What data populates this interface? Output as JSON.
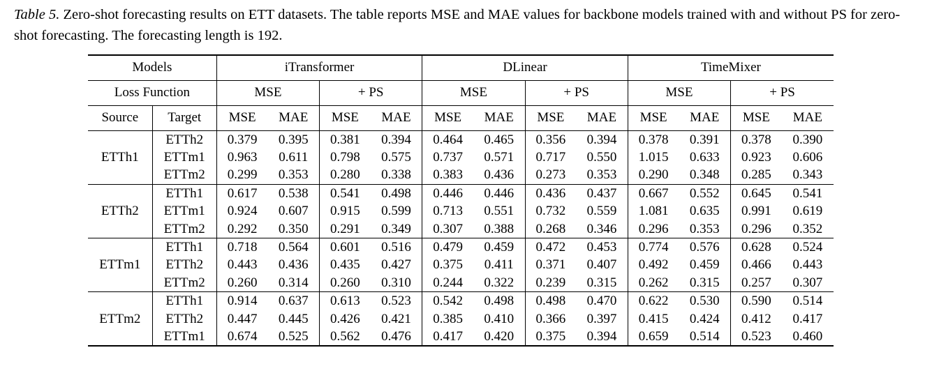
{
  "caption": {
    "label": "Table 5.",
    "text": " Zero-shot forecasting results on ETT datasets. The table reports MSE and MAE values for backbone models trained with and without PS for zero-shot forecasting. The forecasting length is 192."
  },
  "header": {
    "models_label": "Models",
    "models": [
      "iTransformer",
      "DLinear",
      "TimeMixer"
    ],
    "loss_label": "Loss Function",
    "loss": [
      "MSE",
      "+ PS"
    ],
    "source_label": "Source",
    "target_label": "Target",
    "metrics": [
      "MSE",
      "MAE"
    ]
  },
  "groups": [
    {
      "source": "ETTh1",
      "rows": [
        {
          "target": "ETTh2",
          "vals": [
            "0.379",
            "0.395",
            "0.381",
            "0.394",
            "0.464",
            "0.465",
            "0.356",
            "0.394",
            "0.378",
            "0.391",
            "0.378",
            "0.390"
          ],
          "bold": [
            1,
            0,
            0,
            1,
            0,
            0,
            1,
            1,
            0,
            0,
            1,
            1
          ]
        },
        {
          "target": "ETTm1",
          "vals": [
            "0.963",
            "0.611",
            "0.798",
            "0.575",
            "0.737",
            "0.571",
            "0.717",
            "0.550",
            "1.015",
            "0.633",
            "0.923",
            "0.606"
          ],
          "bold": [
            0,
            0,
            1,
            1,
            0,
            0,
            1,
            1,
            0,
            0,
            1,
            1
          ]
        },
        {
          "target": "ETTm2",
          "vals": [
            "0.299",
            "0.353",
            "0.280",
            "0.338",
            "0.383",
            "0.436",
            "0.273",
            "0.353",
            "0.290",
            "0.348",
            "0.285",
            "0.343"
          ],
          "bold": [
            0,
            0,
            1,
            1,
            0,
            0,
            1,
            1,
            0,
            0,
            1,
            1
          ]
        }
      ]
    },
    {
      "source": "ETTh2",
      "rows": [
        {
          "target": "ETTh1",
          "vals": [
            "0.617",
            "0.538",
            "0.541",
            "0.498",
            "0.446",
            "0.446",
            "0.436",
            "0.437",
            "0.667",
            "0.552",
            "0.645",
            "0.541"
          ],
          "bold": [
            0,
            0,
            1,
            1,
            0,
            0,
            1,
            1,
            0,
            0,
            1,
            1
          ]
        },
        {
          "target": "ETTm1",
          "vals": [
            "0.924",
            "0.607",
            "0.915",
            "0.599",
            "0.713",
            "0.551",
            "0.732",
            "0.559",
            "1.081",
            "0.635",
            "0.991",
            "0.619"
          ],
          "bold": [
            0,
            0,
            1,
            1,
            1,
            1,
            0,
            0,
            0,
            0,
            1,
            1
          ]
        },
        {
          "target": "ETTm2",
          "vals": [
            "0.292",
            "0.350",
            "0.291",
            "0.349",
            "0.307",
            "0.388",
            "0.268",
            "0.346",
            "0.296",
            "0.353",
            "0.296",
            "0.352"
          ],
          "bold": [
            0,
            0,
            1,
            1,
            0,
            0,
            1,
            1,
            0,
            0,
            1,
            1
          ]
        }
      ]
    },
    {
      "source": "ETTm1",
      "rows": [
        {
          "target": "ETTh1",
          "vals": [
            "0.718",
            "0.564",
            "0.601",
            "0.516",
            "0.479",
            "0.459",
            "0.472",
            "0.453",
            "0.774",
            "0.576",
            "0.628",
            "0.524"
          ],
          "bold": [
            0,
            0,
            1,
            1,
            0,
            0,
            1,
            1,
            0,
            0,
            1,
            1
          ]
        },
        {
          "target": "ETTh2",
          "vals": [
            "0.443",
            "0.436",
            "0.435",
            "0.427",
            "0.375",
            "0.411",
            "0.371",
            "0.407",
            "0.492",
            "0.459",
            "0.466",
            "0.443"
          ],
          "bold": [
            0,
            0,
            1,
            1,
            0,
            0,
            1,
            1,
            0,
            0,
            1,
            1
          ]
        },
        {
          "target": "ETTm2",
          "vals": [
            "0.260",
            "0.314",
            "0.260",
            "0.310",
            "0.244",
            "0.322",
            "0.239",
            "0.315",
            "0.262",
            "0.315",
            "0.257",
            "0.307"
          ],
          "bold": [
            0,
            0,
            1,
            1,
            0,
            0,
            1,
            1,
            0,
            0,
            1,
            1
          ]
        }
      ]
    },
    {
      "source": "ETTm2",
      "rows": [
        {
          "target": "ETTh1",
          "vals": [
            "0.914",
            "0.637",
            "0.613",
            "0.523",
            "0.542",
            "0.498",
            "0.498",
            "0.470",
            "0.622",
            "0.530",
            "0.590",
            "0.514"
          ],
          "bold": [
            0,
            0,
            1,
            1,
            0,
            0,
            1,
            1,
            0,
            0,
            1,
            1
          ]
        },
        {
          "target": "ETTh2",
          "vals": [
            "0.447",
            "0.445",
            "0.426",
            "0.421",
            "0.385",
            "0.410",
            "0.366",
            "0.397",
            "0.415",
            "0.424",
            "0.412",
            "0.417"
          ],
          "bold": [
            0,
            0,
            1,
            1,
            0,
            0,
            1,
            1,
            0,
            0,
            1,
            1
          ]
        },
        {
          "target": "ETTm1",
          "vals": [
            "0.674",
            "0.525",
            "0.562",
            "0.476",
            "0.417",
            "0.420",
            "0.375",
            "0.394",
            "0.659",
            "0.514",
            "0.523",
            "0.460"
          ],
          "bold": [
            0,
            0,
            1,
            1,
            0,
            0,
            1,
            1,
            0,
            0,
            1,
            1
          ]
        }
      ]
    }
  ]
}
